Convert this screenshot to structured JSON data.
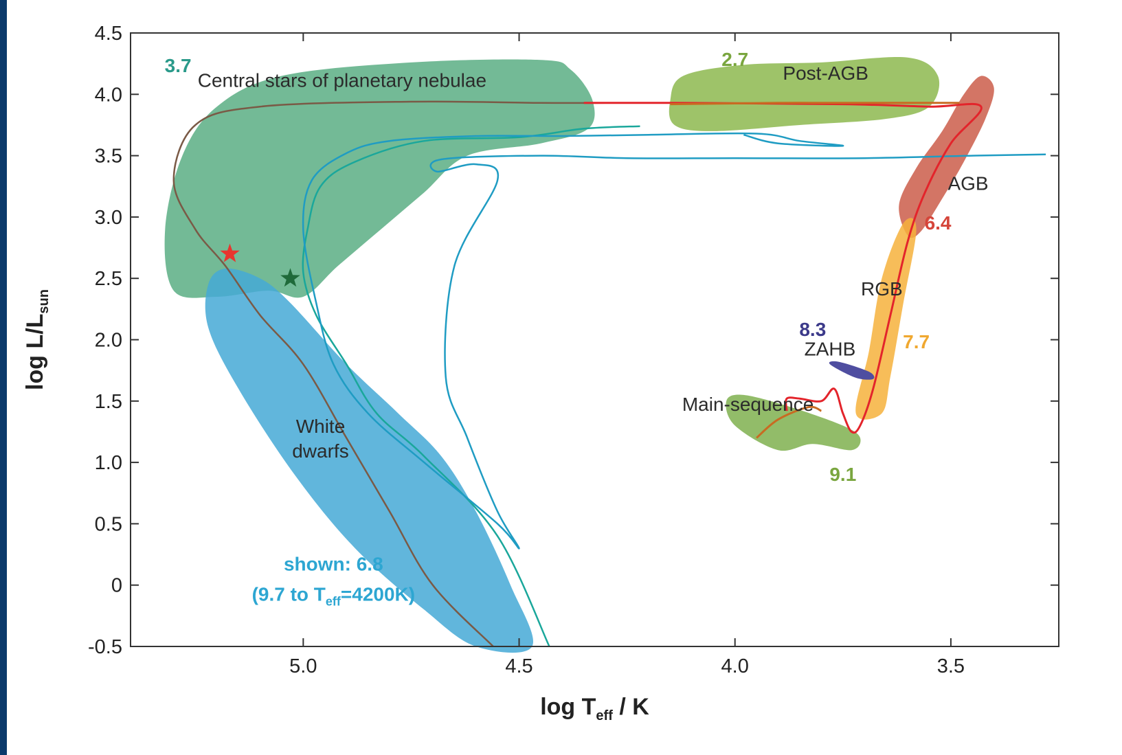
{
  "chart_data": {
    "type": "line",
    "xlabel": {
      "main": "log T",
      "sub": "eff",
      "rest": " / K"
    },
    "ylabel": {
      "main": "log L/L",
      "sub": "sun"
    },
    "xlim": [
      5.4,
      3.25
    ],
    "ylim": [
      -0.5,
      4.5
    ],
    "x_ticks": [
      5.0,
      4.5,
      4.0,
      3.5
    ],
    "x_tick_labels": [
      "5.0",
      "4.5",
      "4.0",
      "3.5"
    ],
    "y_ticks": [
      4.5,
      4.0,
      3.5,
      3.0,
      2.5,
      2.0,
      1.5,
      1.0,
      0.5,
      0,
      -0.5
    ],
    "y_tick_labels": [
      "4.5",
      "4.0",
      "3.5",
      "3.0",
      "2.5",
      "2.0",
      "1.5",
      "1.0",
      "0.5",
      "0",
      "-0.5"
    ],
    "colors": {
      "cspn": "#5aae84",
      "wd": "#45a9d6",
      "postagb": "#8db84f",
      "agb": "#c8523f",
      "rgb": "#f6b23c",
      "ms": "#7fb04f",
      "zahb": "#4f4ea0",
      "track_brown": "#7a5a46",
      "track_teal": "#1aa79b",
      "track_cyan": "#1f9cc3",
      "track_red": "#e3242b",
      "track_orange": "#c86b22",
      "star_red": "#e8352e",
      "star_green": "#1f6a3a"
    },
    "regions": [
      {
        "id": "cspn",
        "label": "Central stars of planetary nebulae",
        "poly": [
          [
            5.28,
            3.5
          ],
          [
            5.2,
            3.9
          ],
          [
            5.05,
            4.15
          ],
          [
            4.75,
            4.26
          ],
          [
            4.45,
            4.28
          ],
          [
            4.38,
            4.2
          ],
          [
            4.33,
            3.95
          ],
          [
            4.34,
            3.72
          ],
          [
            4.45,
            3.6
          ],
          [
            4.62,
            3.5
          ],
          [
            4.72,
            3.2
          ],
          [
            4.82,
            2.9
          ],
          [
            4.92,
            2.6
          ],
          [
            5.0,
            2.35
          ],
          [
            5.08,
            2.4
          ],
          [
            5.2,
            2.35
          ],
          [
            5.3,
            2.4
          ],
          [
            5.32,
            2.9
          ]
        ]
      },
      {
        "id": "wd",
        "label": "White dwarfs",
        "poly": [
          [
            5.22,
            2.45
          ],
          [
            5.18,
            2.58
          ],
          [
            5.1,
            2.5
          ],
          [
            5.03,
            2.3
          ],
          [
            4.9,
            1.8
          ],
          [
            4.78,
            1.4
          ],
          [
            4.68,
            1.05
          ],
          [
            4.6,
            0.6
          ],
          [
            4.52,
            0.0
          ],
          [
            4.47,
            -0.5
          ],
          [
            4.6,
            -0.5
          ],
          [
            4.72,
            -0.2
          ],
          [
            4.88,
            0.3
          ],
          [
            5.02,
            0.9
          ],
          [
            5.15,
            1.6
          ],
          [
            5.22,
            2.1
          ]
        ]
      },
      {
        "id": "postagb",
        "label": "Post-AGB",
        "poly": [
          [
            4.15,
            3.95
          ],
          [
            4.12,
            4.15
          ],
          [
            3.98,
            4.24
          ],
          [
            3.8,
            4.26
          ],
          [
            3.6,
            4.3
          ],
          [
            3.53,
            4.15
          ],
          [
            3.55,
            3.9
          ],
          [
            3.65,
            3.8
          ],
          [
            3.85,
            3.75
          ],
          [
            4.05,
            3.7
          ],
          [
            4.14,
            3.75
          ]
        ]
      },
      {
        "id": "agb",
        "label": "AGB",
        "poly": [
          [
            3.6,
            2.85
          ],
          [
            3.62,
            3.1
          ],
          [
            3.58,
            3.4
          ],
          [
            3.52,
            3.7
          ],
          [
            3.47,
            4.0
          ],
          [
            3.43,
            4.15
          ],
          [
            3.4,
            4.05
          ],
          [
            3.42,
            3.8
          ],
          [
            3.47,
            3.45
          ],
          [
            3.52,
            3.15
          ],
          [
            3.57,
            2.88
          ]
        ]
      },
      {
        "id": "rgb",
        "label": "RGB",
        "poly": [
          [
            3.72,
            1.4
          ],
          [
            3.69,
            1.9
          ],
          [
            3.66,
            2.5
          ],
          [
            3.61,
            2.95
          ],
          [
            3.58,
            2.9
          ],
          [
            3.61,
            2.3
          ],
          [
            3.64,
            1.7
          ],
          [
            3.66,
            1.4
          ]
        ]
      },
      {
        "id": "ms",
        "label": "Main-sequence",
        "poly": [
          [
            4.02,
            1.5
          ],
          [
            3.98,
            1.55
          ],
          [
            3.87,
            1.45
          ],
          [
            3.75,
            1.3
          ],
          [
            3.71,
            1.2
          ],
          [
            3.73,
            1.1
          ],
          [
            3.82,
            1.15
          ],
          [
            3.9,
            1.1
          ],
          [
            4.0,
            1.3
          ]
        ]
      },
      {
        "id": "zahb",
        "label": "ZAHB",
        "poly": [
          [
            3.78,
            1.8
          ],
          [
            3.76,
            1.82
          ],
          [
            3.69,
            1.74
          ],
          [
            3.68,
            1.68
          ],
          [
            3.72,
            1.69
          ]
        ]
      }
    ],
    "series": [
      {
        "id": "track_brown",
        "points": [
          [
            4.3,
            3.93
          ],
          [
            4.45,
            3.93
          ],
          [
            4.75,
            3.94
          ],
          [
            5.1,
            3.9
          ],
          [
            5.25,
            3.75
          ],
          [
            5.3,
            3.3
          ],
          [
            5.25,
            2.9
          ],
          [
            5.18,
            2.6
          ],
          [
            5.1,
            2.2
          ],
          [
            5.0,
            1.8
          ],
          [
            4.9,
            1.2
          ],
          [
            4.8,
            0.6
          ],
          [
            4.7,
            0.0
          ],
          [
            4.56,
            -0.5
          ]
        ]
      },
      {
        "id": "track_teal",
        "points": [
          [
            4.22,
            3.74
          ],
          [
            4.35,
            3.72
          ],
          [
            4.5,
            3.65
          ],
          [
            4.72,
            3.62
          ],
          [
            4.88,
            3.45
          ],
          [
            4.96,
            3.25
          ],
          [
            4.99,
            2.9
          ],
          [
            5.0,
            2.55
          ],
          [
            4.97,
            2.2
          ],
          [
            4.9,
            1.8
          ],
          [
            4.83,
            1.4
          ],
          [
            4.72,
            1.05
          ],
          [
            4.55,
            0.4
          ],
          [
            4.43,
            -0.5
          ]
        ]
      },
      {
        "id": "track_cyan",
        "points": [
          [
            3.28,
            3.51
          ],
          [
            3.45,
            3.5
          ],
          [
            3.7,
            3.48
          ],
          [
            4.0,
            3.48
          ],
          [
            4.25,
            3.48
          ],
          [
            4.45,
            3.5
          ],
          [
            4.68,
            3.47
          ],
          [
            4.69,
            3.37
          ],
          [
            4.6,
            3.43
          ],
          [
            4.55,
            3.3
          ],
          [
            4.65,
            2.6
          ],
          [
            4.67,
            1.7
          ],
          [
            4.62,
            1.2
          ],
          [
            4.55,
            0.6
          ],
          [
            4.5,
            0.3
          ],
          [
            4.55,
            0.5
          ],
          [
            4.72,
            1.0
          ],
          [
            4.85,
            1.4
          ],
          [
            4.93,
            1.8
          ],
          [
            4.97,
            2.3
          ],
          [
            5.0,
            2.9
          ],
          [
            4.98,
            3.3
          ],
          [
            4.9,
            3.52
          ],
          [
            4.8,
            3.62
          ],
          [
            4.6,
            3.66
          ],
          [
            4.4,
            3.66
          ],
          [
            4.2,
            3.67
          ],
          [
            3.95,
            3.68
          ],
          [
            3.85,
            3.62
          ],
          [
            3.75,
            3.58
          ],
          [
            3.9,
            3.6
          ],
          [
            3.98,
            3.67
          ]
        ]
      },
      {
        "id": "track_red",
        "points": [
          [
            4.35,
            3.93
          ],
          [
            4.15,
            3.93
          ],
          [
            3.75,
            3.92
          ],
          [
            3.55,
            3.9
          ],
          [
            3.43,
            3.9
          ],
          [
            3.5,
            3.6
          ],
          [
            3.56,
            3.2
          ],
          [
            3.6,
            2.8
          ],
          [
            3.64,
            2.2
          ],
          [
            3.68,
            1.6
          ],
          [
            3.71,
            1.3
          ],
          [
            3.73,
            1.25
          ],
          [
            3.75,
            1.4
          ],
          [
            3.77,
            1.6
          ],
          [
            3.8,
            1.5
          ],
          [
            3.85,
            1.52
          ],
          [
            3.88,
            1.52
          ],
          [
            3.88,
            1.42
          ]
        ]
      },
      {
        "id": "track_orange",
        "points": [
          [
            4.15,
            3.92
          ],
          [
            3.9,
            3.93
          ],
          [
            3.78,
            3.93
          ],
          [
            3.6,
            3.93
          ],
          [
            3.48,
            3.93
          ]
        ]
      },
      {
        "id": "track_ms",
        "points": [
          [
            3.95,
            1.2
          ],
          [
            3.9,
            1.35
          ],
          [
            3.83,
            1.45
          ],
          [
            3.8,
            1.42
          ]
        ]
      }
    ],
    "markers": [
      {
        "id": "star_red",
        "x": 5.17,
        "y": 2.7
      },
      {
        "id": "star_green",
        "x": 5.03,
        "y": 2.5
      }
    ],
    "region_labels": [
      {
        "text": "Central stars of planetary nebulae",
        "x": 4.91,
        "y": 4.06
      },
      {
        "text": "Post-AGB",
        "x": 3.79,
        "y": 4.12
      },
      {
        "text": "AGB",
        "x": 3.46,
        "y": 3.22
      },
      {
        "text": "RGB",
        "x": 3.66,
        "y": 2.36
      },
      {
        "text": "ZAHB",
        "x": 3.78,
        "y": 1.87
      },
      {
        "text": "Main-sequence",
        "x": 3.97,
        "y": 1.42
      },
      {
        "text": "White",
        "x": 4.96,
        "y": 1.24
      },
      {
        "text": "dwarfs",
        "x": 4.96,
        "y": 1.04
      }
    ],
    "age_labels": [
      {
        "text": "3.7",
        "x": 5.29,
        "y": 4.18,
        "color": "#2a9a8a"
      },
      {
        "text": "2.7",
        "x": 4.0,
        "y": 4.23,
        "color": "#7aa63f"
      },
      {
        "text": "6.4",
        "x": 3.53,
        "y": 2.9,
        "color": "#d5453a"
      },
      {
        "text": "7.7",
        "x": 3.58,
        "y": 1.93,
        "color": "#f0a830"
      },
      {
        "text": "8.3",
        "x": 3.82,
        "y": 2.03,
        "color": "#3c3a8a"
      },
      {
        "text": "9.1",
        "x": 3.75,
        "y": 0.85,
        "color": "#7aa63f"
      }
    ],
    "annotation": {
      "line1": "shown: 6.8",
      "line2_pre": "(9.7 to T",
      "line2_sub": "eff",
      "line2_post": "=4200K)",
      "x": 4.93,
      "y": 0.12,
      "color": "#2da6d2"
    }
  }
}
